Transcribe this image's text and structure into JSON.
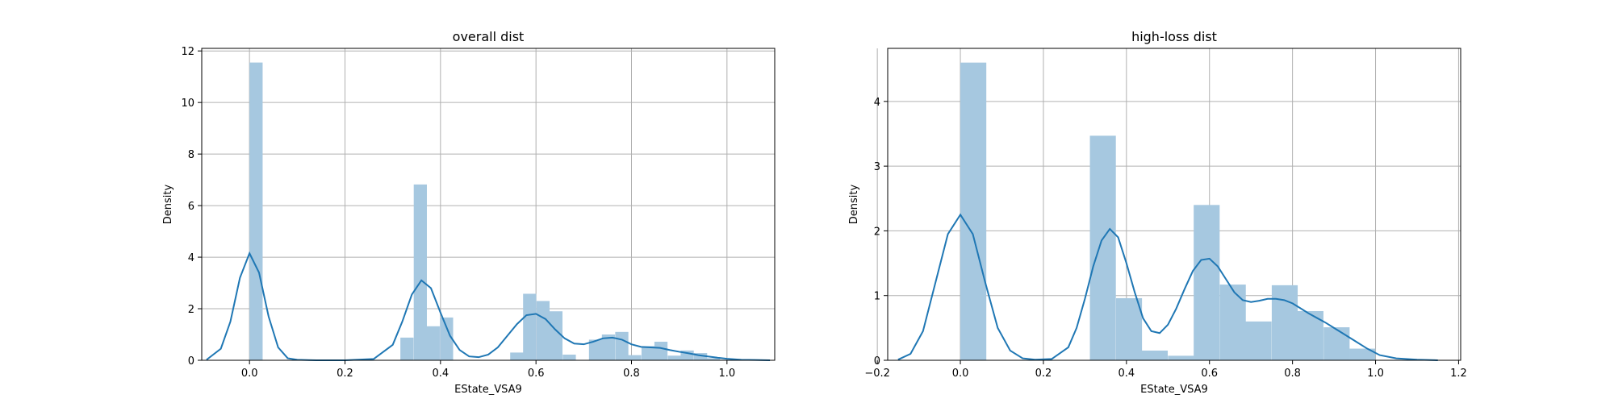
{
  "chart_data": [
    {
      "type": "bar",
      "title": "overall dist",
      "xlabel": "EState_VSA9",
      "ylabel": "Density",
      "xlim": [
        -0.1,
        1.1
      ],
      "ylim": [
        0,
        12.1
      ],
      "xticks": [
        0.0,
        0.2,
        0.4,
        0.6,
        0.8,
        1.0
      ],
      "xtick_labels": [
        "0.0",
        "0.2",
        "0.4",
        "0.6",
        "0.8",
        "1.0"
      ],
      "yticks": [
        0,
        2,
        4,
        6,
        8,
        10,
        12
      ],
      "ytick_labels": [
        "0",
        "2",
        "4",
        "6",
        "8",
        "10",
        "12"
      ],
      "grid": true,
      "bar_color": "#a6c8e0",
      "kde_color": "#1f77b4",
      "histogram": {
        "bin_width": 0.0275,
        "bin_starts": [
          0.0,
          0.316,
          0.344,
          0.371,
          0.399,
          0.546,
          0.573,
          0.601,
          0.628,
          0.656,
          0.711,
          0.738,
          0.766,
          0.793,
          0.821,
          0.848,
          0.876,
          0.903,
          0.931,
          0.958
        ],
        "values": [
          11.55,
          0.88,
          6.82,
          1.32,
          1.66,
          0.3,
          2.58,
          2.3,
          1.9,
          0.22,
          0.8,
          1.0,
          1.1,
          0.2,
          0.55,
          0.72,
          0.18,
          0.38,
          0.28,
          0.08
        ]
      },
      "kde": {
        "x": [
          -0.09,
          -0.06,
          -0.04,
          -0.02,
          0.0,
          0.02,
          0.04,
          0.06,
          0.08,
          0.1,
          0.14,
          0.2,
          0.26,
          0.3,
          0.32,
          0.34,
          0.36,
          0.38,
          0.4,
          0.42,
          0.44,
          0.46,
          0.48,
          0.5,
          0.52,
          0.54,
          0.56,
          0.58,
          0.6,
          0.62,
          0.64,
          0.66,
          0.68,
          0.7,
          0.72,
          0.74,
          0.76,
          0.78,
          0.8,
          0.82,
          0.84,
          0.86,
          0.88,
          0.9,
          0.92,
          0.94,
          0.96,
          0.98,
          1.0,
          1.03,
          1.06,
          1.09
        ],
        "y": [
          0.02,
          0.45,
          1.5,
          3.2,
          4.15,
          3.4,
          1.7,
          0.5,
          0.08,
          0.02,
          0.0,
          0.0,
          0.05,
          0.6,
          1.5,
          2.55,
          3.1,
          2.8,
          1.85,
          0.95,
          0.4,
          0.15,
          0.12,
          0.22,
          0.5,
          0.95,
          1.4,
          1.75,
          1.8,
          1.6,
          1.2,
          0.85,
          0.65,
          0.62,
          0.72,
          0.85,
          0.88,
          0.8,
          0.62,
          0.52,
          0.5,
          0.48,
          0.4,
          0.33,
          0.27,
          0.2,
          0.15,
          0.1,
          0.06,
          0.02,
          0.01,
          0.0
        ]
      }
    },
    {
      "type": "bar",
      "title": "high-loss dist",
      "xlabel": "EState_VSA9",
      "ylabel": "Density",
      "xlim": [
        -0.175,
        1.205
      ],
      "ylim": [
        0,
        4.82
      ],
      "xticks": [
        -0.2,
        0.0,
        0.2,
        0.4,
        0.6,
        0.8,
        1.0,
        1.2
      ],
      "xtick_labels": [
        "−0.2",
        "0.0",
        "0.2",
        "0.4",
        "0.6",
        "0.8",
        "1.0",
        "1.2"
      ],
      "yticks": [
        0,
        1,
        2,
        3,
        4
      ],
      "ytick_labels": [
        "0",
        "1",
        "2",
        "3",
        "4"
      ],
      "grid": true,
      "bar_color": "#a6c8e0",
      "kde_color": "#1f77b4",
      "histogram": {
        "bin_width": 0.0625,
        "bin_starts": [
          0.0,
          0.312,
          0.375,
          0.437,
          0.5,
          0.562,
          0.625,
          0.687,
          0.75,
          0.812,
          0.875,
          0.937
        ],
        "values": [
          4.6,
          3.47,
          0.96,
          0.15,
          0.07,
          2.4,
          1.17,
          0.6,
          1.16,
          0.76,
          0.51,
          0.18
        ]
      },
      "kde": {
        "x": [
          -0.15,
          -0.12,
          -0.09,
          -0.06,
          -0.03,
          0.0,
          0.03,
          0.06,
          0.09,
          0.12,
          0.15,
          0.18,
          0.22,
          0.26,
          0.28,
          0.3,
          0.32,
          0.34,
          0.36,
          0.38,
          0.4,
          0.42,
          0.44,
          0.46,
          0.48,
          0.5,
          0.52,
          0.54,
          0.56,
          0.58,
          0.6,
          0.62,
          0.64,
          0.66,
          0.68,
          0.7,
          0.72,
          0.74,
          0.76,
          0.78,
          0.8,
          0.82,
          0.84,
          0.86,
          0.88,
          0.9,
          0.92,
          0.95,
          0.98,
          1.01,
          1.05,
          1.1,
          1.15
        ],
        "y": [
          0.01,
          0.1,
          0.45,
          1.2,
          1.95,
          2.25,
          1.95,
          1.2,
          0.5,
          0.15,
          0.03,
          0.01,
          0.02,
          0.2,
          0.5,
          0.95,
          1.45,
          1.85,
          2.03,
          1.9,
          1.5,
          1.05,
          0.65,
          0.45,
          0.42,
          0.55,
          0.8,
          1.1,
          1.38,
          1.55,
          1.57,
          1.45,
          1.25,
          1.05,
          0.93,
          0.9,
          0.92,
          0.95,
          0.95,
          0.93,
          0.88,
          0.8,
          0.72,
          0.65,
          0.58,
          0.5,
          0.42,
          0.3,
          0.18,
          0.08,
          0.03,
          0.01,
          0.0
        ]
      }
    }
  ]
}
